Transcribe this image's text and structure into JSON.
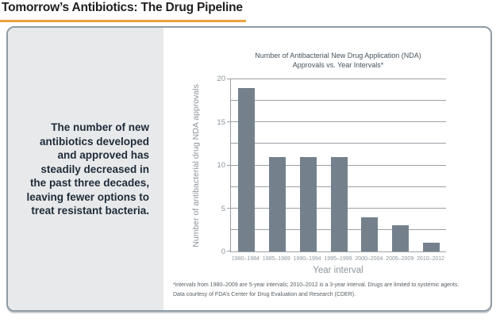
{
  "header": {
    "title": "Tomorrow’s Antibiotics: The Drug Pipeline"
  },
  "callout": {
    "text": "The number of new\nantibiotics developed\nand approved has\nsteadily decreased in\nthe past three decades,\nleaving fewer options to\ntreat resistant bacteria."
  },
  "chart_data": {
    "type": "bar",
    "title": "Number of Antibacterial New Drug Application (NDA)\nApprovals vs. Year Intervals*",
    "categories": [
      "1980–1984",
      "1985–1989",
      "1990–1994",
      "1995–1999",
      "2000–2004",
      "2005–2009",
      "2010–2012"
    ],
    "values": [
      19,
      11,
      11,
      11,
      4,
      3,
      1
    ],
    "xlabel": "Year interval",
    "ylabel": "Number of antibacterial drug NDA approvals",
    "ylim": [
      0,
      20
    ],
    "yticks": [
      0,
      5,
      10,
      15,
      20
    ],
    "gridline_step": 2.5,
    "grid": "horizontal",
    "legend": "none"
  },
  "footnotes": {
    "line1": "*intervals from 1980–2009 are 5-year intervals; 2010–2012 is a 3-year interval. Drugs are limited to systemic agents.",
    "line2": "Data courtesy of FDA’s Center for Drug Evaluation and Research (CDER)."
  },
  "colors": {
    "accent_rule": "#eaa33e",
    "bar": "#74818d",
    "grid": "#9aa1a7",
    "axis_text": "#8e959b",
    "chart_title_text": "#47525a",
    "callout_text": "#1f2c39",
    "card_border": "#8f9ba4",
    "panel_bg": "#e8e9ea",
    "title_text": "#221e1f",
    "footnote_text": "#575d62"
  }
}
